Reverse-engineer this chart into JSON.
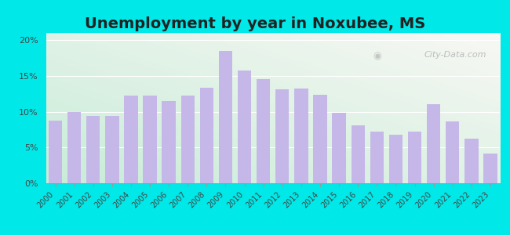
{
  "title": "Unemployment by year in Noxubee, MS",
  "years": [
    2000,
    2001,
    2002,
    2003,
    2004,
    2005,
    2006,
    2007,
    2008,
    2009,
    2010,
    2011,
    2012,
    2013,
    2014,
    2015,
    2016,
    2017,
    2018,
    2019,
    2020,
    2021,
    2022,
    2023
  ],
  "values": [
    8.7,
    10.0,
    9.4,
    9.4,
    12.2,
    12.3,
    11.5,
    12.3,
    13.3,
    18.5,
    15.7,
    14.6,
    13.1,
    13.2,
    12.4,
    9.8,
    8.1,
    7.2,
    6.8,
    7.2,
    11.1,
    8.6,
    6.2,
    4.2
  ],
  "bar_color": "#c5b8e8",
  "outer_background": "#00e8e8",
  "grad_bottom_left": "#c8ecd8",
  "grad_top_right": "#f8f8f4",
  "ylim": [
    0,
    21
  ],
  "yticks": [
    0,
    5,
    10,
    15,
    20
  ],
  "ytick_labels": [
    "0%",
    "5%",
    "10%",
    "15%",
    "20%"
  ],
  "title_fontsize": 14,
  "watermark_text": "City-Data.com"
}
